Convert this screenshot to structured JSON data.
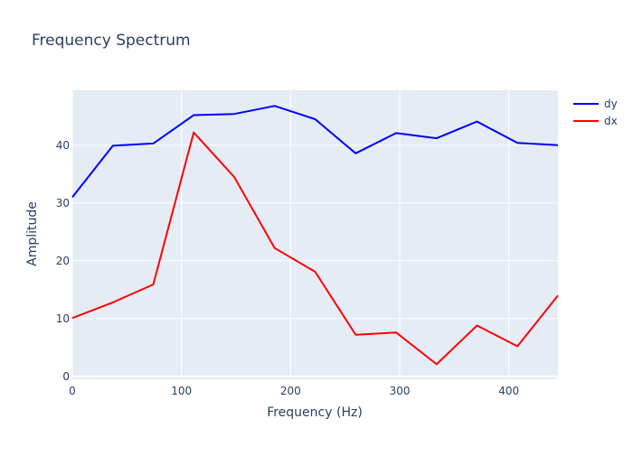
{
  "chart_data": {
    "type": "line",
    "title": "Frequency Spectrum",
    "xlabel": "Frequency (Hz)",
    "ylabel": "Amplitude",
    "xlim": [
      0,
      445
    ],
    "ylim": [
      -0.5,
      49.5
    ],
    "xticks": [
      0,
      100,
      200,
      300,
      400
    ],
    "yticks": [
      0,
      10,
      20,
      30,
      40
    ],
    "grid": true,
    "legend_position": "top-right",
    "plot_background": "#e5ecf6",
    "x": [
      0,
      37.1,
      74.2,
      111.2,
      148.3,
      185.4,
      222.5,
      259.6,
      296.7,
      333.8,
      370.8,
      407.9,
      445
    ],
    "series": [
      {
        "name": "dy",
        "color": "#0000ff",
        "values": [
          31.0,
          39.9,
          40.3,
          45.2,
          45.4,
          46.8,
          44.5,
          38.6,
          42.1,
          41.2,
          44.1,
          40.4,
          40.0
        ]
      },
      {
        "name": "dx",
        "color": "#ff0000",
        "values": [
          10.1,
          12.8,
          15.9,
          42.2,
          34.5,
          22.2,
          18.1,
          7.2,
          7.6,
          2.1,
          8.8,
          5.2,
          14.0
        ]
      }
    ]
  }
}
